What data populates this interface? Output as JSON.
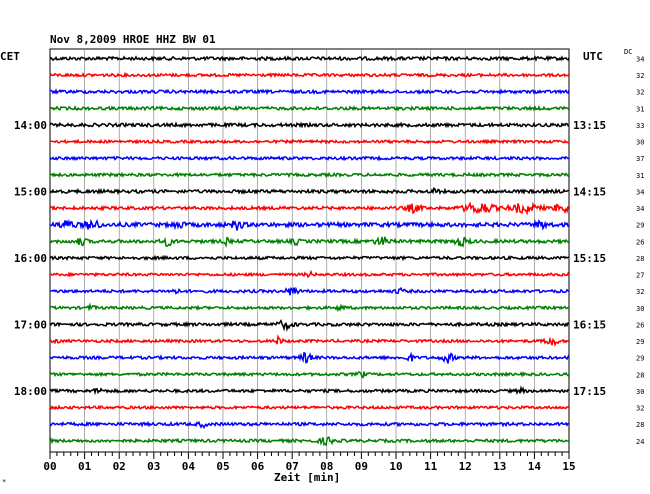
{
  "header": {
    "title": "Nov 8,2009   HROE HHZ BW 01",
    "left_timezone": "CET",
    "right_timezone": "UTC",
    "dc_label": "DC",
    "corner_mark": "*"
  },
  "colors": {
    "trace_cycle": [
      "#000000",
      "#ff0000",
      "#0000ff",
      "#007f00"
    ],
    "grid": "#000000"
  },
  "chart_data": {
    "type": "seismogram helicorder",
    "station": "HROE HHZ BW 01",
    "date": "Nov 8,2009",
    "xlabel": "Zeit [min]",
    "x_ticks": [
      "00",
      "01",
      "02",
      "03",
      "04",
      "05",
      "06",
      "07",
      "08",
      "09",
      "10",
      "11",
      "12",
      "13",
      "14",
      "15"
    ],
    "xlim": [
      0,
      15
    ],
    "trace_minutes_per_line": 15,
    "left_time_labels": [
      {
        "trace": 4,
        "label": "14:00"
      },
      {
        "trace": 8,
        "label": "15:00"
      },
      {
        "trace": 12,
        "label": "16:00"
      },
      {
        "trace": 16,
        "label": "17:00"
      },
      {
        "trace": 20,
        "label": "18:00"
      }
    ],
    "right_time_labels": [
      {
        "trace": 4,
        "label": "13:15"
      },
      {
        "trace": 8,
        "label": "14:15"
      },
      {
        "trace": 12,
        "label": "15:15"
      },
      {
        "trace": 16,
        "label": "16:15"
      },
      {
        "trace": 20,
        "label": "17:15"
      }
    ],
    "dc_offsets": [
      "34",
      "32",
      "32",
      "31",
      "33",
      "30",
      "37",
      "31",
      "34",
      "34",
      "29",
      "26",
      "28",
      "27",
      "32",
      "30",
      "26",
      "29",
      "29",
      "28",
      "30",
      "32",
      "28",
      "24"
    ],
    "traces": [
      {
        "color_index": 0,
        "noise": 1.6,
        "events": []
      },
      {
        "color_index": 1,
        "noise": 1.4,
        "events": []
      },
      {
        "color_index": 2,
        "noise": 1.5,
        "events": []
      },
      {
        "color_index": 3,
        "noise": 1.5,
        "events": []
      },
      {
        "color_index": 0,
        "noise": 1.6,
        "events": []
      },
      {
        "color_index": 1,
        "noise": 1.3,
        "events": []
      },
      {
        "color_index": 2,
        "noise": 1.4,
        "events": []
      },
      {
        "color_index": 3,
        "noise": 1.4,
        "events": []
      },
      {
        "color_index": 0,
        "noise": 1.6,
        "events": [
          {
            "t": 11.1,
            "amp": 2.5,
            "w": 0.1
          }
        ]
      },
      {
        "color_index": 1,
        "noise": 1.5,
        "events": [
          {
            "t": 10.5,
            "amp": 3.5,
            "w": 0.2
          },
          {
            "t": 12.4,
            "amp": 5,
            "w": 0.4
          },
          {
            "t": 13.7,
            "amp": 4,
            "w": 0.4
          },
          {
            "t": 14.8,
            "amp": 3.5,
            "w": 0.25
          }
        ]
      },
      {
        "color_index": 2,
        "noise": 2.0,
        "events": [
          {
            "t": 0.5,
            "amp": 3.5,
            "w": 0.2
          },
          {
            "t": 1.2,
            "amp": 4.5,
            "w": 0.2
          },
          {
            "t": 3.7,
            "amp": 3.5,
            "w": 0.12
          },
          {
            "t": 5.4,
            "amp": 4,
            "w": 0.15
          },
          {
            "t": 14.2,
            "amp": 2.5,
            "w": 0.2
          }
        ]
      },
      {
        "color_index": 3,
        "noise": 1.6,
        "events": [
          {
            "t": 0.9,
            "amp": 3,
            "w": 0.15
          },
          {
            "t": 3.4,
            "amp": 3.5,
            "w": 0.15
          },
          {
            "t": 5.1,
            "amp": 2.5,
            "w": 0.1
          },
          {
            "t": 7.1,
            "amp": 2.5,
            "w": 0.1
          },
          {
            "t": 9.6,
            "amp": 3.5,
            "w": 0.2
          },
          {
            "t": 11.9,
            "amp": 3.5,
            "w": 0.2
          }
        ]
      },
      {
        "color_index": 0,
        "noise": 1.4,
        "events": []
      },
      {
        "color_index": 1,
        "noise": 1.3,
        "events": [
          {
            "t": 7.5,
            "amp": 2,
            "w": 0.1
          }
        ]
      },
      {
        "color_index": 2,
        "noise": 1.4,
        "events": [
          {
            "t": 3.6,
            "amp": 2.5,
            "w": 0.1
          },
          {
            "t": 7.0,
            "amp": 4,
            "w": 0.15
          },
          {
            "t": 10.1,
            "amp": 2.5,
            "w": 0.1
          }
        ]
      },
      {
        "color_index": 3,
        "noise": 1.3,
        "events": [
          {
            "t": 1.2,
            "amp": 2,
            "w": 0.1
          },
          {
            "t": 8.4,
            "amp": 2.5,
            "w": 0.1
          }
        ]
      },
      {
        "color_index": 0,
        "noise": 1.5,
        "events": [
          {
            "t": 6.8,
            "amp": 3.5,
            "w": 0.2
          }
        ]
      },
      {
        "color_index": 1,
        "noise": 1.3,
        "events": [
          {
            "t": 0.2,
            "amp": 2.5,
            "w": 0.05
          },
          {
            "t": 6.6,
            "amp": 3.5,
            "w": 0.1
          },
          {
            "t": 14.5,
            "amp": 4.5,
            "w": 0.15
          }
        ]
      },
      {
        "color_index": 2,
        "noise": 1.4,
        "events": [
          {
            "t": 7.4,
            "amp": 4.5,
            "w": 0.15
          },
          {
            "t": 10.4,
            "amp": 3.5,
            "w": 0.1
          },
          {
            "t": 11.5,
            "amp": 4.5,
            "w": 0.15
          },
          {
            "t": 15.0,
            "amp": 3,
            "w": 0.05
          }
        ]
      },
      {
        "color_index": 3,
        "noise": 1.3,
        "events": [
          {
            "t": 9.0,
            "amp": 3,
            "w": 0.1
          }
        ]
      },
      {
        "color_index": 0,
        "noise": 1.4,
        "events": [
          {
            "t": 1.4,
            "amp": 3,
            "w": 0.1
          },
          {
            "t": 13.6,
            "amp": 2,
            "w": 0.1
          }
        ]
      },
      {
        "color_index": 1,
        "noise": 1.3,
        "events": []
      },
      {
        "color_index": 2,
        "noise": 1.5,
        "events": [
          {
            "t": 4.4,
            "amp": 2.5,
            "w": 0.1
          }
        ]
      },
      {
        "color_index": 3,
        "noise": 1.4,
        "events": [
          {
            "t": 8.0,
            "amp": 3,
            "w": 0.2
          }
        ]
      }
    ]
  }
}
